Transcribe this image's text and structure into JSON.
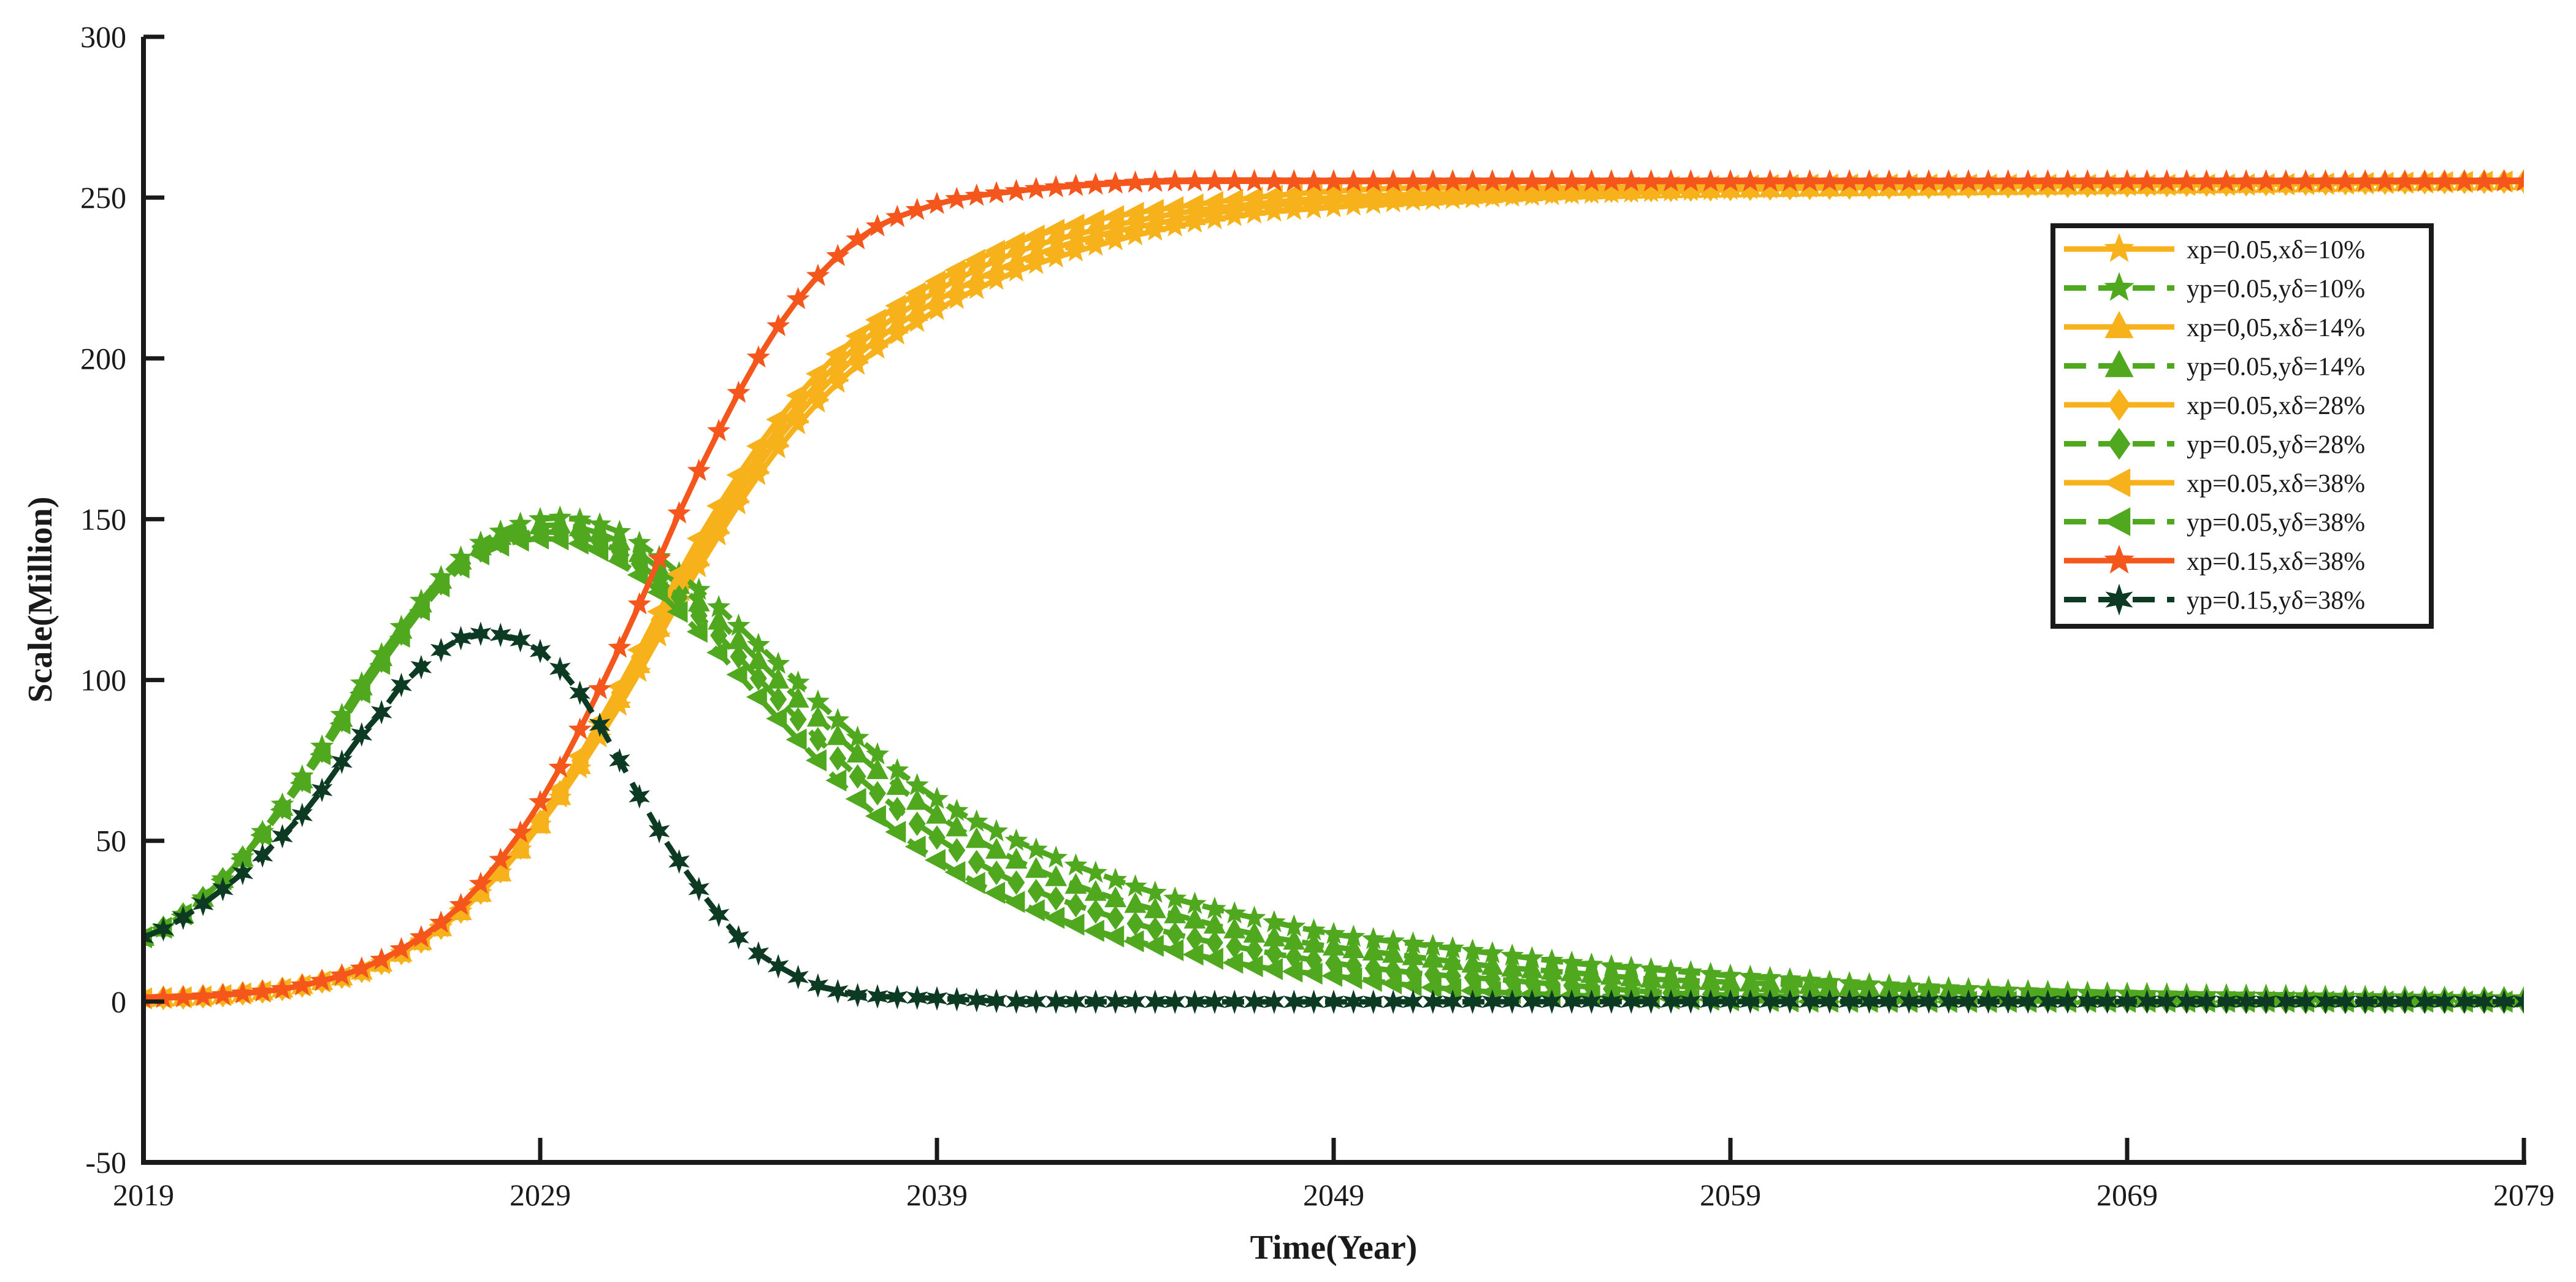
{
  "chart_data": {
    "type": "line",
    "title": "",
    "xlabel": "Time(Year)",
    "ylabel": "Scale(Million)",
    "xlim": [
      2019,
      2079
    ],
    "ylim": [
      -50,
      300
    ],
    "xticks": [
      2019,
      2029,
      2039,
      2049,
      2059,
      2069,
      2079
    ],
    "yticks": [
      -50,
      0,
      50,
      100,
      150,
      200,
      250,
      300
    ],
    "grid": false,
    "legend_position": "upper-right",
    "series": [
      {
        "name": "xp=0.05,xδ=10%",
        "color": "#f7b21b",
        "dash": "solid",
        "marker": "star",
        "points": [
          [
            2019,
            1
          ],
          [
            2021,
            2
          ],
          [
            2023,
            5
          ],
          [
            2025,
            12
          ],
          [
            2027,
            28
          ],
          [
            2029,
            55
          ],
          [
            2031,
            92
          ],
          [
            2033,
            135
          ],
          [
            2035,
            172
          ],
          [
            2037,
            198
          ],
          [
            2039,
            215
          ],
          [
            2041,
            227
          ],
          [
            2043,
            235
          ],
          [
            2045,
            241
          ],
          [
            2047,
            245
          ],
          [
            2049,
            247
          ],
          [
            2051,
            249
          ],
          [
            2055,
            251
          ],
          [
            2061,
            253
          ],
          [
            2071,
            254
          ],
          [
            2079,
            255
          ]
        ]
      },
      {
        "name": "yp=0.05,yδ=10%",
        "color": "#4fa81e",
        "dash": "dashed",
        "marker": "star",
        "points": [
          [
            2019,
            20
          ],
          [
            2021,
            38
          ],
          [
            2023,
            70
          ],
          [
            2025,
            108
          ],
          [
            2027,
            138
          ],
          [
            2029,
            150
          ],
          [
            2031,
            146
          ],
          [
            2033,
            128
          ],
          [
            2035,
            105
          ],
          [
            2037,
            82
          ],
          [
            2039,
            63
          ],
          [
            2041,
            50
          ],
          [
            2043,
            40
          ],
          [
            2045,
            32
          ],
          [
            2047,
            26
          ],
          [
            2049,
            21
          ],
          [
            2051,
            18
          ],
          [
            2053,
            15
          ],
          [
            2055,
            12
          ],
          [
            2057,
            10
          ],
          [
            2059,
            8
          ],
          [
            2063,
            5
          ],
          [
            2067,
            3
          ],
          [
            2071,
            2
          ],
          [
            2079,
            1
          ]
        ]
      },
      {
        "name": "xp=0,05,xδ=14%",
        "color": "#f7b21b",
        "dash": "solid",
        "marker": "triangle-up",
        "points": [
          [
            2019,
            1
          ],
          [
            2021,
            2
          ],
          [
            2023,
            5
          ],
          [
            2025,
            12
          ],
          [
            2027,
            28
          ],
          [
            2029,
            55
          ],
          [
            2031,
            94
          ],
          [
            2033,
            138
          ],
          [
            2035,
            175
          ],
          [
            2037,
            201
          ],
          [
            2039,
            218
          ],
          [
            2041,
            230
          ],
          [
            2043,
            238
          ],
          [
            2045,
            243
          ],
          [
            2047,
            247
          ],
          [
            2049,
            249
          ],
          [
            2051,
            250
          ],
          [
            2055,
            252
          ],
          [
            2061,
            253
          ],
          [
            2071,
            254
          ],
          [
            2079,
            255
          ]
        ]
      },
      {
        "name": "yp=0.05,yδ=14%",
        "color": "#4fa81e",
        "dash": "dashed",
        "marker": "triangle-up",
        "points": [
          [
            2019,
            20
          ],
          [
            2021,
            38
          ],
          [
            2023,
            69
          ],
          [
            2025,
            107
          ],
          [
            2027,
            137
          ],
          [
            2029,
            148
          ],
          [
            2031,
            143
          ],
          [
            2033,
            124
          ],
          [
            2035,
            100
          ],
          [
            2037,
            77
          ],
          [
            2039,
            58
          ],
          [
            2041,
            44
          ],
          [
            2043,
            34
          ],
          [
            2045,
            27
          ],
          [
            2047,
            21
          ],
          [
            2049,
            17
          ],
          [
            2051,
            14
          ],
          [
            2053,
            11
          ],
          [
            2055,
            9
          ],
          [
            2057,
            7
          ],
          [
            2059,
            6
          ],
          [
            2063,
            4
          ],
          [
            2067,
            2
          ],
          [
            2071,
            1
          ],
          [
            2079,
            1
          ]
        ]
      },
      {
        "name": "xp=0.05,xδ=28%",
        "color": "#f7b21b",
        "dash": "solid",
        "marker": "diamond",
        "points": [
          [
            2019,
            1
          ],
          [
            2021,
            2
          ],
          [
            2023,
            5
          ],
          [
            2025,
            12
          ],
          [
            2027,
            28
          ],
          [
            2029,
            56
          ],
          [
            2031,
            96
          ],
          [
            2033,
            141
          ],
          [
            2035,
            178
          ],
          [
            2037,
            204
          ],
          [
            2039,
            221
          ],
          [
            2041,
            233
          ],
          [
            2043,
            240
          ],
          [
            2045,
            245
          ],
          [
            2047,
            248
          ],
          [
            2049,
            250
          ],
          [
            2051,
            251
          ],
          [
            2055,
            252
          ],
          [
            2061,
            253
          ],
          [
            2071,
            254
          ],
          [
            2079,
            255
          ]
        ]
      },
      {
        "name": "yp=0.05,yδ=28%",
        "color": "#4fa81e",
        "dash": "dashed",
        "marker": "diamond",
        "points": [
          [
            2019,
            20
          ],
          [
            2021,
            38
          ],
          [
            2023,
            69
          ],
          [
            2025,
            106
          ],
          [
            2027,
            136
          ],
          [
            2029,
            146
          ],
          [
            2031,
            140
          ],
          [
            2033,
            120
          ],
          [
            2035,
            94
          ],
          [
            2037,
            70
          ],
          [
            2039,
            51
          ],
          [
            2041,
            37
          ],
          [
            2043,
            28
          ],
          [
            2045,
            21
          ],
          [
            2047,
            16
          ],
          [
            2049,
            12
          ],
          [
            2051,
            9
          ],
          [
            2053,
            7
          ],
          [
            2055,
            5
          ],
          [
            2057,
            3
          ],
          [
            2059,
            2
          ],
          [
            2063,
            1
          ],
          [
            2071,
            0
          ],
          [
            2079,
            0
          ]
        ]
      },
      {
        "name": "xp=0.05,xδ=38%",
        "color": "#f7b21b",
        "dash": "solid",
        "marker": "triangle-left",
        "points": [
          [
            2019,
            1
          ],
          [
            2021,
            2
          ],
          [
            2023,
            5
          ],
          [
            2025,
            12
          ],
          [
            2027,
            29
          ],
          [
            2029,
            57
          ],
          [
            2031,
            98
          ],
          [
            2033,
            144
          ],
          [
            2035,
            181
          ],
          [
            2037,
            207
          ],
          [
            2039,
            224
          ],
          [
            2041,
            236
          ],
          [
            2043,
            243
          ],
          [
            2045,
            247
          ],
          [
            2047,
            250
          ],
          [
            2049,
            252
          ],
          [
            2051,
            253
          ],
          [
            2055,
            253
          ],
          [
            2061,
            254
          ],
          [
            2071,
            254
          ],
          [
            2079,
            255
          ]
        ]
      },
      {
        "name": "yp=0.05,yδ=38%",
        "color": "#4fa81e",
        "dash": "dashed",
        "marker": "triangle-left",
        "points": [
          [
            2019,
            20
          ],
          [
            2021,
            38
          ],
          [
            2023,
            68
          ],
          [
            2025,
            105
          ],
          [
            2027,
            135
          ],
          [
            2029,
            144
          ],
          [
            2031,
            137
          ],
          [
            2033,
            115
          ],
          [
            2035,
            88
          ],
          [
            2037,
            63
          ],
          [
            2039,
            44
          ],
          [
            2041,
            31
          ],
          [
            2043,
            22
          ],
          [
            2045,
            16
          ],
          [
            2047,
            11
          ],
          [
            2049,
            8
          ],
          [
            2051,
            5
          ],
          [
            2053,
            3
          ],
          [
            2055,
            2
          ],
          [
            2057,
            1
          ],
          [
            2061,
            0
          ],
          [
            2071,
            0
          ],
          [
            2079,
            0
          ]
        ]
      },
      {
        "name": "xp=0.15,xδ=38%",
        "color": "#f4561c",
        "dash": "solid",
        "marker": "star",
        "points": [
          [
            2019,
            1
          ],
          [
            2021,
            2
          ],
          [
            2023,
            5
          ],
          [
            2025,
            13
          ],
          [
            2027,
            30
          ],
          [
            2029,
            62
          ],
          [
            2031,
            110
          ],
          [
            2033,
            165
          ],
          [
            2035,
            210
          ],
          [
            2037,
            237
          ],
          [
            2039,
            248
          ],
          [
            2041,
            252
          ],
          [
            2043,
            254
          ],
          [
            2045,
            255
          ],
          [
            2049,
            255
          ],
          [
            2059,
            255
          ],
          [
            2069,
            255
          ],
          [
            2079,
            255
          ]
        ]
      },
      {
        "name": "yp=0.15,yδ=38%",
        "color": "#0c3a22",
        "dash": "dashed",
        "marker": "star",
        "points": [
          [
            2019,
            20
          ],
          [
            2021,
            35
          ],
          [
            2023,
            58
          ],
          [
            2025,
            90
          ],
          [
            2026,
            104
          ],
          [
            2027,
            113
          ],
          [
            2028,
            114
          ],
          [
            2029,
            109
          ],
          [
            2030,
            96
          ],
          [
            2031,
            75
          ],
          [
            2032,
            53
          ],
          [
            2033,
            35
          ],
          [
            2034,
            20
          ],
          [
            2035,
            11
          ],
          [
            2036,
            5
          ],
          [
            2037,
            2
          ],
          [
            2039,
            1
          ],
          [
            2041,
            0
          ],
          [
            2059,
            0
          ],
          [
            2079,
            0
          ]
        ]
      }
    ]
  }
}
